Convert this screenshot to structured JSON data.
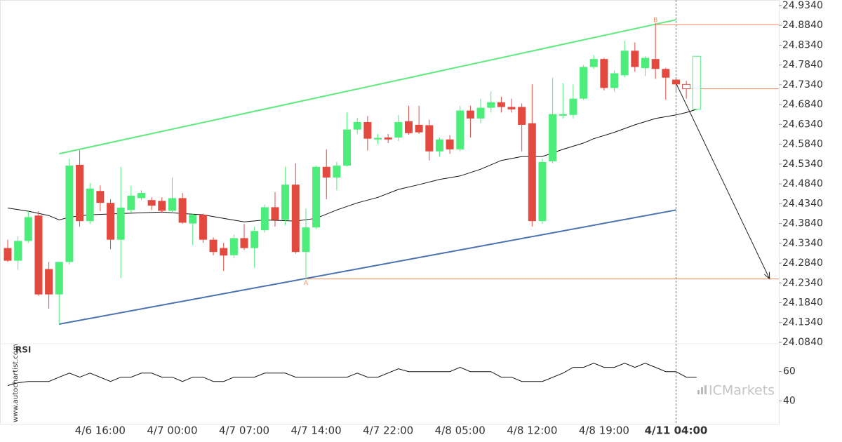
{
  "chart_data": {
    "type": "candlestick",
    "up_color": "#4ded7b",
    "down_color": "#e2493f",
    "categories": [
      null,
      null,
      null,
      null,
      null,
      null,
      null,
      null,
      null,
      "4/6 16:00",
      null,
      null,
      null,
      null,
      null,
      null,
      "4/7 00:00",
      null,
      null,
      null,
      null,
      null,
      null,
      "4/7 07:00",
      null,
      null,
      null,
      null,
      null,
      null,
      "4/7 14:00",
      null,
      null,
      null,
      null,
      null,
      null,
      "4/7 22:00",
      null,
      null,
      null,
      null,
      null,
      null,
      "4/8 05:00",
      null,
      null,
      null,
      null,
      null,
      null,
      "4/8 12:00",
      null,
      null,
      null,
      null,
      null,
      null,
      "4/8 19:00",
      null,
      null,
      null,
      null,
      null,
      null,
      "4/11 04:00",
      null,
      null
    ],
    "open": [
      24.322,
      24.29,
      24.34,
      24.404,
      24.269,
      24.205,
      24.287,
      24.532,
      24.39,
      24.466,
      24.436,
      24.343,
      24.418,
      24.448,
      24.443,
      24.441,
      24.416,
      24.448,
      24.384,
      24.406,
      24.343,
      24.322,
      24.304,
      24.347,
      24.322,
      24.367,
      24.425,
      24.393,
      24.482,
      24.312,
      24.374,
      24.527,
      24.5,
      24.53,
      24.621,
      24.64,
      24.596,
      24.601,
      24.601,
      24.642,
      24.633,
      24.632,
      24.566,
      24.596,
      24.571,
      24.669,
      24.649,
      24.676,
      24.69,
      24.678,
      24.678,
      24.637,
      24.39,
      24.541,
      24.656,
      24.658,
      24.699,
      24.779,
      24.799,
      24.726,
      24.758,
      24.82,
      24.776,
      24.799,
      24.774,
      24.747,
      24.735,
      24.672
    ],
    "high": [
      24.343,
      24.352,
      24.415,
      24.415,
      24.287,
      24.287,
      24.548,
      24.569,
      24.486,
      24.48,
      24.445,
      24.527,
      24.479,
      24.468,
      24.45,
      24.45,
      24.5,
      24.461,
      24.409,
      24.409,
      24.349,
      24.335,
      24.356,
      24.383,
      24.376,
      24.432,
      24.463,
      24.527,
      24.536,
      24.422,
      24.53,
      24.571,
      24.539,
      24.664,
      24.651,
      24.655,
      24.61,
      24.61,
      24.658,
      24.681,
      24.681,
      24.646,
      24.601,
      24.607,
      24.681,
      24.681,
      24.699,
      24.717,
      24.704,
      24.699,
      24.687,
      24.735,
      24.548,
      24.752,
      24.738,
      24.735,
      24.784,
      24.809,
      24.802,
      24.77,
      24.845,
      24.841,
      24.806,
      24.889,
      24.777,
      24.752,
      24.744,
      24.806
    ],
    "low": [
      24.287,
      24.267,
      24.335,
      24.201,
      24.169,
      24.13,
      24.281,
      24.376,
      24.383,
      24.415,
      24.319,
      24.246,
      24.411,
      24.443,
      24.418,
      24.411,
      24.411,
      24.383,
      24.329,
      24.335,
      24.304,
      24.264,
      24.296,
      24.317,
      24.272,
      24.361,
      24.376,
      24.379,
      24.308,
      24.244,
      24.37,
      24.445,
      24.468,
      24.528,
      24.61,
      24.568,
      24.584,
      24.587,
      24.592,
      24.608,
      24.61,
      24.543,
      24.553,
      24.56,
      24.566,
      24.601,
      24.637,
      24.664,
      24.664,
      24.664,
      24.566,
      24.376,
      24.383,
      24.536,
      24.649,
      24.649,
      24.696,
      24.774,
      24.72,
      24.717,
      24.752,
      24.767,
      24.756,
      24.749,
      24.696,
      24.717,
      24.699,
      24.669
    ],
    "close": [
      24.29,
      24.34,
      24.4,
      24.205,
      24.205,
      24.287,
      24.53,
      24.39,
      24.472,
      24.436,
      24.343,
      24.424,
      24.454,
      24.461,
      24.429,
      24.416,
      24.448,
      24.386,
      24.406,
      24.343,
      24.312,
      24.303,
      24.347,
      24.322,
      24.365,
      24.425,
      24.393,
      24.482,
      24.312,
      24.374,
      24.527,
      24.5,
      24.53,
      24.621,
      24.64,
      24.598,
      24.6,
      24.596,
      24.64,
      24.612,
      24.614,
      24.566,
      24.596,
      24.571,
      24.669,
      24.649,
      24.676,
      24.69,
      24.678,
      24.672,
      24.633,
      24.39,
      24.539,
      24.66,
      24.66,
      24.699,
      24.779,
      24.799,
      24.726,
      24.763,
      24.82,
      24.779,
      24.802,
      24.774,
      24.752,
      24.735,
      24.724,
      24.806
    ],
    "hollow": [
      66,
      67
    ],
    "xlim": [
      -0.75,
      75
    ],
    "ylim": [
      24.0804,
      24.948
    ],
    "yticks": [
      {
        "value": 24.084,
        "label": "24.0840"
      },
      {
        "value": 24.134,
        "label": "24.1340"
      },
      {
        "value": 24.184,
        "label": "24.1840"
      },
      {
        "value": 24.234,
        "label": "24.2340"
      },
      {
        "value": 24.284,
        "label": "24.2840"
      },
      {
        "value": 24.334,
        "label": "24.3340"
      },
      {
        "value": 24.384,
        "label": "24.3840"
      },
      {
        "value": 24.434,
        "label": "24.4340"
      },
      {
        "value": 24.484,
        "label": "24.4840"
      },
      {
        "value": 24.534,
        "label": "24.5340"
      },
      {
        "value": 24.584,
        "label": "24.5840"
      },
      {
        "value": 24.634,
        "label": "24.6340"
      },
      {
        "value": 24.684,
        "label": "24.6840"
      },
      {
        "value": 24.734,
        "label": "24.7340"
      },
      {
        "value": 24.784,
        "label": "24.7840"
      },
      {
        "value": 24.834,
        "label": "24.8340"
      },
      {
        "value": 24.884,
        "label": "24.8840"
      },
      {
        "value": 24.934,
        "label": "24.9340"
      }
    ],
    "ma": {
      "color": "#111111",
      "x": [
        0,
        2,
        4,
        5,
        6,
        8,
        11,
        15,
        17,
        19,
        21,
        23,
        25,
        28,
        30,
        32,
        34,
        36,
        38,
        40,
        42,
        44,
        46,
        48,
        50,
        52,
        54,
        56,
        57,
        59,
        61,
        63,
        65,
        66,
        67
      ],
      "values": [
        24.423,
        24.415,
        24.404,
        24.393,
        24.4,
        24.406,
        24.409,
        24.413,
        24.409,
        24.406,
        24.397,
        24.388,
        24.393,
        24.39,
        24.397,
        24.418,
        24.436,
        24.45,
        24.47,
        24.482,
        24.495,
        24.504,
        24.521,
        24.543,
        24.553,
        24.553,
        24.571,
        24.587,
        24.598,
        24.614,
        24.633,
        24.649,
        24.658,
        24.664,
        24.672
      ]
    },
    "lines": [
      {
        "color": "#5fe97f",
        "x": [
          5,
          65
        ],
        "values": [
          24.56,
          24.898
        ]
      },
      {
        "color": "#4a72b0",
        "x": [
          5,
          65
        ],
        "values": [
          24.13,
          24.418
        ]
      },
      {
        "color": "#222222",
        "x": [
          65,
          74.1
        ],
        "values": [
          24.738,
          24.244
        ],
        "arrow": true
      }
    ],
    "levels": [
      {
        "color": "#f08a5d",
        "x": 63,
        "value": 24.886
      },
      {
        "color": "#f08a5d",
        "x": 66.5,
        "value": 24.724
      },
      {
        "color": "#f08a5d",
        "x": 29,
        "value": 24.244
      }
    ],
    "annotations": [
      {
        "text": "A",
        "x": 29,
        "value": 24.244,
        "position": "below"
      },
      {
        "text": "B",
        "x": 63,
        "value": 24.886,
        "position": "above"
      }
    ],
    "marker_x": 65,
    "rsi": {
      "title": "RSI",
      "color": "#111111",
      "ylim": [
        24,
        78
      ],
      "yticks": [
        40,
        60
      ],
      "x": [
        0,
        1,
        2,
        4,
        5,
        6,
        7,
        8,
        10,
        11,
        12,
        13,
        14,
        15,
        16,
        17,
        18,
        19,
        20,
        21,
        22,
        24,
        25,
        27,
        28,
        33,
        34,
        35,
        36,
        38,
        39,
        43,
        44,
        45,
        47,
        48,
        49,
        50,
        52,
        54,
        55,
        56,
        57,
        58,
        59,
        60,
        61,
        62,
        63,
        64,
        65,
        66,
        67
      ],
      "values": [
        50.5,
        52.4,
        53.3,
        53.3,
        56.2,
        59,
        56.2,
        59,
        53.3,
        56.2,
        56.2,
        59,
        59,
        56.2,
        56.2,
        53.3,
        56.2,
        56.2,
        53.3,
        53.3,
        56.2,
        56.2,
        59,
        59,
        56.2,
        56.2,
        59,
        56.2,
        56.2,
        61.9,
        60,
        60,
        62.9,
        60,
        60,
        56.2,
        56.2,
        53.3,
        53.3,
        59,
        62.9,
        62.9,
        65.7,
        62.9,
        62.9,
        65.7,
        62.9,
        65.7,
        62.9,
        60,
        60,
        56.2,
        56.2
      ]
    },
    "watermark": "www.autochartist.com",
    "brand": "ICMarkets"
  }
}
